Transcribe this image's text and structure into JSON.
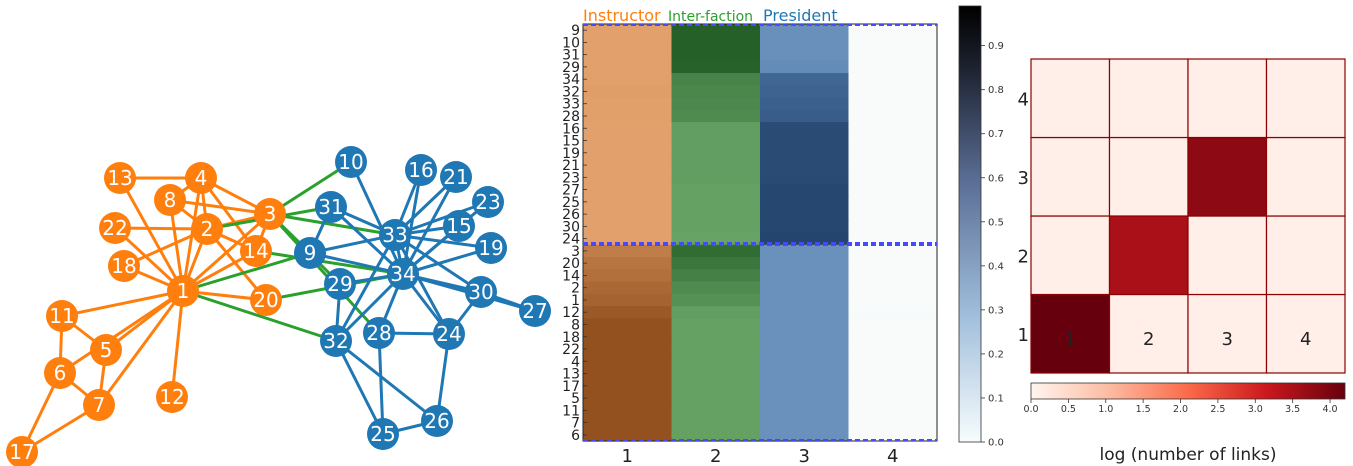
{
  "colors": {
    "instructor": "#ff7f0e",
    "president": "#1f77b4",
    "inter_faction": "#2ca02c",
    "node_text": "#ffffff",
    "divider": "#4848ff",
    "block_edge": "#8b0000"
  },
  "chart_data": [
    {
      "type": "network",
      "nodes": [
        {
          "id": "1",
          "group": "instructor"
        },
        {
          "id": "2",
          "group": "instructor"
        },
        {
          "id": "3",
          "group": "instructor"
        },
        {
          "id": "4",
          "group": "instructor"
        },
        {
          "id": "5",
          "group": "instructor"
        },
        {
          "id": "6",
          "group": "instructor"
        },
        {
          "id": "7",
          "group": "instructor"
        },
        {
          "id": "8",
          "group": "instructor"
        },
        {
          "id": "11",
          "group": "instructor"
        },
        {
          "id": "12",
          "group": "instructor"
        },
        {
          "id": "13",
          "group": "instructor"
        },
        {
          "id": "14",
          "group": "instructor"
        },
        {
          "id": "17",
          "group": "instructor"
        },
        {
          "id": "18",
          "group": "instructor"
        },
        {
          "id": "20",
          "group": "instructor"
        },
        {
          "id": "22",
          "group": "instructor"
        },
        {
          "id": "9",
          "group": "president"
        },
        {
          "id": "10",
          "group": "president"
        },
        {
          "id": "15",
          "group": "president"
        },
        {
          "id": "16",
          "group": "president"
        },
        {
          "id": "19",
          "group": "president"
        },
        {
          "id": "21",
          "group": "president"
        },
        {
          "id": "23",
          "group": "president"
        },
        {
          "id": "24",
          "group": "president"
        },
        {
          "id": "25",
          "group": "president"
        },
        {
          "id": "26",
          "group": "president"
        },
        {
          "id": "27",
          "group": "president"
        },
        {
          "id": "28",
          "group": "president"
        },
        {
          "id": "29",
          "group": "president"
        },
        {
          "id": "30",
          "group": "president"
        },
        {
          "id": "31",
          "group": "president"
        },
        {
          "id": "32",
          "group": "president"
        },
        {
          "id": "33",
          "group": "president"
        },
        {
          "id": "34",
          "group": "president"
        }
      ],
      "edges": [
        [
          "1",
          "2"
        ],
        [
          "1",
          "3"
        ],
        [
          "1",
          "4"
        ],
        [
          "1",
          "5"
        ],
        [
          "1",
          "6"
        ],
        [
          "1",
          "7"
        ],
        [
          "1",
          "8"
        ],
        [
          "1",
          "11"
        ],
        [
          "1",
          "12"
        ],
        [
          "1",
          "13"
        ],
        [
          "1",
          "14"
        ],
        [
          "1",
          "18"
        ],
        [
          "1",
          "20"
        ],
        [
          "1",
          "22"
        ],
        [
          "2",
          "3"
        ],
        [
          "2",
          "4"
        ],
        [
          "2",
          "8"
        ],
        [
          "2",
          "14"
        ],
        [
          "2",
          "18"
        ],
        [
          "2",
          "20"
        ],
        [
          "2",
          "22"
        ],
        [
          "3",
          "4"
        ],
        [
          "3",
          "8"
        ],
        [
          "3",
          "14"
        ],
        [
          "4",
          "8"
        ],
        [
          "4",
          "13"
        ],
        [
          "4",
          "14"
        ],
        [
          "5",
          "7"
        ],
        [
          "5",
          "11"
        ],
        [
          "6",
          "7"
        ],
        [
          "6",
          "11"
        ],
        [
          "6",
          "17"
        ],
        [
          "7",
          "17"
        ],
        [
          "1",
          "9"
        ],
        [
          "1",
          "32"
        ],
        [
          "2",
          "31"
        ],
        [
          "3",
          "9"
        ],
        [
          "3",
          "10"
        ],
        [
          "3",
          "28"
        ],
        [
          "3",
          "29"
        ],
        [
          "3",
          "33"
        ],
        [
          "14",
          "34"
        ],
        [
          "20",
          "34"
        ],
        [
          "9",
          "31"
        ],
        [
          "9",
          "33"
        ],
        [
          "9",
          "34"
        ],
        [
          "10",
          "34"
        ],
        [
          "15",
          "33"
        ],
        [
          "15",
          "34"
        ],
        [
          "16",
          "33"
        ],
        [
          "16",
          "34"
        ],
        [
          "19",
          "33"
        ],
        [
          "19",
          "34"
        ],
        [
          "21",
          "33"
        ],
        [
          "21",
          "34"
        ],
        [
          "23",
          "33"
        ],
        [
          "23",
          "34"
        ],
        [
          "24",
          "26"
        ],
        [
          "24",
          "28"
        ],
        [
          "24",
          "30"
        ],
        [
          "24",
          "33"
        ],
        [
          "24",
          "34"
        ],
        [
          "25",
          "26"
        ],
        [
          "25",
          "28"
        ],
        [
          "25",
          "32"
        ],
        [
          "26",
          "32"
        ],
        [
          "27",
          "30"
        ],
        [
          "27",
          "34"
        ],
        [
          "28",
          "34"
        ],
        [
          "29",
          "32"
        ],
        [
          "29",
          "34"
        ],
        [
          "30",
          "33"
        ],
        [
          "30",
          "34"
        ],
        [
          "31",
          "33"
        ],
        [
          "31",
          "34"
        ],
        [
          "32",
          "33"
        ],
        [
          "32",
          "34"
        ],
        [
          "33",
          "34"
        ]
      ]
    },
    {
      "type": "heatmap",
      "column_groups": [
        "Instructor",
        "Inter-faction",
        "President"
      ],
      "x_tick_labels": [
        "1",
        "2",
        "3",
        "4"
      ],
      "row_labels": [
        "9",
        "10",
        "31",
        "29",
        "34",
        "32",
        "33",
        "28",
        "16",
        "15",
        "19",
        "21",
        "23",
        "27",
        "25",
        "26",
        "30",
        "24",
        "3",
        "20",
        "14",
        "2",
        "1",
        "12",
        "8",
        "18",
        "22",
        "4",
        "13",
        "17",
        "5",
        "11",
        "7",
        "6"
      ],
      "values": [
        [
          0.22,
          0.88,
          0.33,
          0.01
        ],
        [
          0.22,
          0.88,
          0.33,
          0.01
        ],
        [
          0.22,
          0.88,
          0.33,
          0.01
        ],
        [
          0.22,
          0.86,
          0.36,
          0.01
        ],
        [
          0.23,
          0.6,
          0.62,
          0.01
        ],
        [
          0.25,
          0.58,
          0.64,
          0.01
        ],
        [
          0.23,
          0.56,
          0.66,
          0.01
        ],
        [
          0.23,
          0.55,
          0.68,
          0.01
        ],
        [
          0.22,
          0.4,
          0.8,
          0.01
        ],
        [
          0.22,
          0.4,
          0.8,
          0.01
        ],
        [
          0.22,
          0.4,
          0.8,
          0.01
        ],
        [
          0.22,
          0.4,
          0.8,
          0.01
        ],
        [
          0.22,
          0.4,
          0.8,
          0.01
        ],
        [
          0.22,
          0.38,
          0.82,
          0.01
        ],
        [
          0.22,
          0.38,
          0.82,
          0.01
        ],
        [
          0.22,
          0.38,
          0.82,
          0.01
        ],
        [
          0.22,
          0.38,
          0.82,
          0.01
        ],
        [
          0.22,
          0.36,
          0.84,
          0.01
        ],
        [
          0.5,
          0.78,
          0.32,
          0.01
        ],
        [
          0.56,
          0.7,
          0.32,
          0.01
        ],
        [
          0.6,
          0.62,
          0.32,
          0.01
        ],
        [
          0.66,
          0.55,
          0.32,
          0.01
        ],
        [
          0.7,
          0.5,
          0.32,
          0.01
        ],
        [
          0.78,
          0.4,
          0.32,
          0.02
        ],
        [
          0.84,
          0.38,
          0.32,
          0.01
        ],
        [
          0.84,
          0.38,
          0.32,
          0.01
        ],
        [
          0.84,
          0.38,
          0.32,
          0.01
        ],
        [
          0.84,
          0.38,
          0.32,
          0.01
        ],
        [
          0.84,
          0.38,
          0.32,
          0.01
        ],
        [
          0.84,
          0.38,
          0.32,
          0.01
        ],
        [
          0.84,
          0.38,
          0.32,
          0.01
        ],
        [
          0.84,
          0.38,
          0.32,
          0.01
        ],
        [
          0.84,
          0.38,
          0.32,
          0.01
        ],
        [
          0.84,
          0.38,
          0.32,
          0.01
        ]
      ],
      "group_boundaries_after_row": [
        "24"
      ],
      "colorbar": {
        "range": [
          0,
          1
        ],
        "ticks": [
          "0.0",
          "0.1",
          "0.2",
          "0.3",
          "0.4",
          "0.5",
          "0.6",
          "0.7",
          "0.8",
          "0.9"
        ]
      }
    },
    {
      "type": "heatmap",
      "x_tick_labels": [
        "1",
        "2",
        "3",
        "4"
      ],
      "y_tick_labels": [
        "1",
        "2",
        "3",
        "4"
      ],
      "values": [
        [
          4.2,
          0.1,
          0.1,
          0.1
        ],
        [
          0.1,
          3.5,
          0.1,
          0.1
        ],
        [
          0.1,
          0.1,
          3.8,
          0.1
        ],
        [
          0.1,
          0.1,
          0.1,
          0.1
        ]
      ],
      "colorbar": {
        "label": "log (number of links)",
        "range": [
          0,
          4.2
        ],
        "ticks": [
          "0.0",
          "0.5",
          "1.0",
          "1.5",
          "2.0",
          "2.5",
          "3.0",
          "3.5",
          "4.0"
        ]
      }
    }
  ]
}
